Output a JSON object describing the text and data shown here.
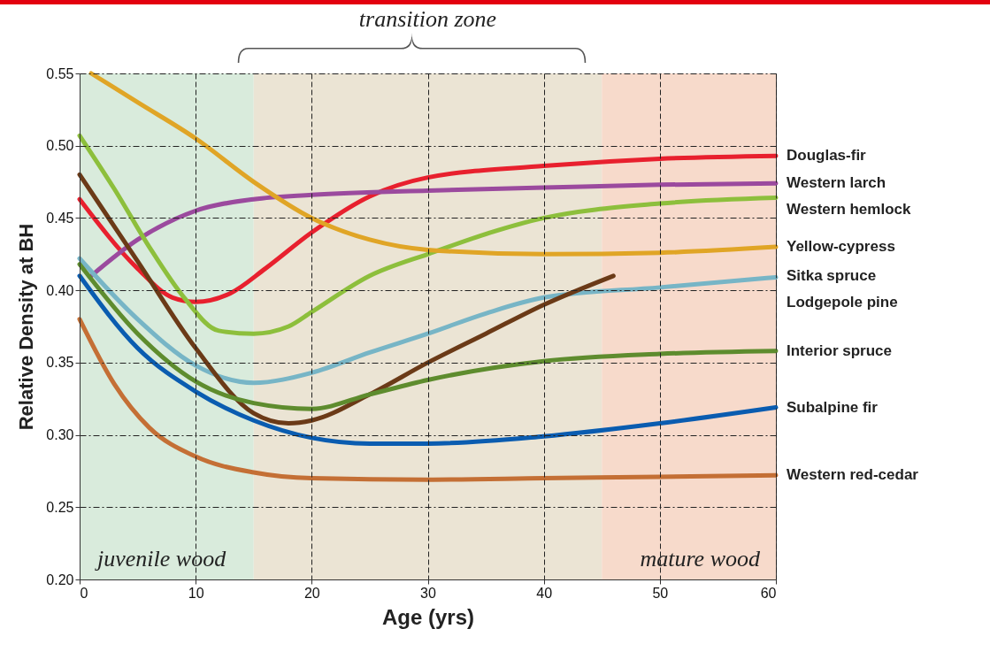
{
  "chart_data": {
    "type": "line",
    "xlabel": "Age (yrs)",
    "ylabel": "Relative Density at BH",
    "xlim": [
      0,
      60
    ],
    "ylim": [
      0.2,
      0.55
    ],
    "xticks": [
      0,
      10,
      20,
      30,
      40,
      50,
      60
    ],
    "yticks": [
      {
        "value": 0.2,
        "label": "0.20"
      },
      {
        "value": 0.25,
        "label": "0.25"
      },
      {
        "value": 0.3,
        "label": "0.30"
      },
      {
        "value": 0.35,
        "label": "0.35"
      },
      {
        "value": 0.4,
        "label": "0.40"
      },
      {
        "value": 0.45,
        "label": "0.45"
      },
      {
        "value": 0.5,
        "label": "0.50"
      },
      {
        "value": 0.55,
        "label": "0.55"
      }
    ],
    "grid": true,
    "line_style": "solid",
    "bands": [
      {
        "axis": "x",
        "from": 0,
        "to": 15,
        "label": "juvenile wood",
        "color": "#d9ebdc"
      },
      {
        "axis": "x",
        "from": 15,
        "to": 45,
        "label": "transition zone",
        "color": "#ebe4d4"
      },
      {
        "axis": "x",
        "from": 45,
        "to": 60,
        "label": "mature wood",
        "color": "#f7dacb"
      }
    ],
    "series": [
      {
        "name": "Douglas-fir",
        "color": "#e8202e",
        "x": [
          0,
          5,
          8,
          10,
          13,
          16,
          20,
          25,
          30,
          40,
          50,
          60
        ],
        "values": [
          0.463,
          0.415,
          0.395,
          0.392,
          0.398,
          0.415,
          0.44,
          0.465,
          0.478,
          0.486,
          0.491,
          0.493
        ]
      },
      {
        "name": "Western larch",
        "color": "#9b4a9e",
        "x": [
          1,
          5,
          10,
          15,
          20,
          30,
          40,
          50,
          60
        ],
        "values": [
          0.41,
          0.435,
          0.455,
          0.463,
          0.466,
          0.469,
          0.471,
          0.473,
          0.474
        ]
      },
      {
        "name": "Western hemlock",
        "color": "#8dbf3c",
        "x": [
          0,
          3,
          6,
          9,
          12,
          15,
          18,
          20,
          25,
          30,
          40,
          50,
          60
        ],
        "values": [
          0.507,
          0.47,
          0.43,
          0.395,
          0.372,
          0.37,
          0.375,
          0.385,
          0.41,
          0.425,
          0.45,
          0.46,
          0.464
        ]
      },
      {
        "name": "Yellow-cypress",
        "color": "#e0a526",
        "x": [
          1,
          5,
          10,
          15,
          20,
          25,
          30,
          40,
          50,
          60
        ],
        "values": [
          0.55,
          0.53,
          0.505,
          0.475,
          0.45,
          0.435,
          0.428,
          0.425,
          0.426,
          0.43
        ]
      },
      {
        "name": "Lodgepole pine",
        "color": "#77b5c6",
        "x": [
          0,
          5,
          10,
          15,
          20,
          25,
          30,
          35,
          40,
          50,
          60
        ],
        "values": [
          0.422,
          0.38,
          0.348,
          0.336,
          0.343,
          0.357,
          0.37,
          0.384,
          0.395,
          0.402,
          0.409
        ]
      },
      {
        "name": "Sitka spruce",
        "color": "#6b3a17",
        "x": [
          0,
          5,
          10,
          15,
          18,
          20,
          25,
          30,
          35,
          40,
          46
        ],
        "values": [
          0.48,
          0.42,
          0.36,
          0.315,
          0.308,
          0.31,
          0.328,
          0.35,
          0.37,
          0.39,
          0.41
        ]
      },
      {
        "name": "Interior spruce",
        "color": "#5e8c2e",
        "x": [
          0,
          5,
          10,
          15,
          20,
          25,
          30,
          40,
          50,
          60
        ],
        "values": [
          0.418,
          0.37,
          0.337,
          0.322,
          0.318,
          0.328,
          0.338,
          0.351,
          0.356,
          0.358
        ]
      },
      {
        "name": "Subalpine fir",
        "color": "#0a5cb0",
        "x": [
          0,
          5,
          10,
          15,
          20,
          25,
          30,
          40,
          50,
          60
        ],
        "values": [
          0.41,
          0.36,
          0.33,
          0.31,
          0.298,
          0.294,
          0.294,
          0.299,
          0.308,
          0.319
        ]
      },
      {
        "name": "Western red-cedar",
        "color": "#c46f35",
        "x": [
          0,
          3,
          6,
          10,
          15,
          20,
          30,
          40,
          50,
          60
        ],
        "values": [
          0.38,
          0.335,
          0.305,
          0.285,
          0.274,
          0.27,
          0.269,
          0.27,
          0.271,
          0.272
        ]
      }
    ]
  }
}
